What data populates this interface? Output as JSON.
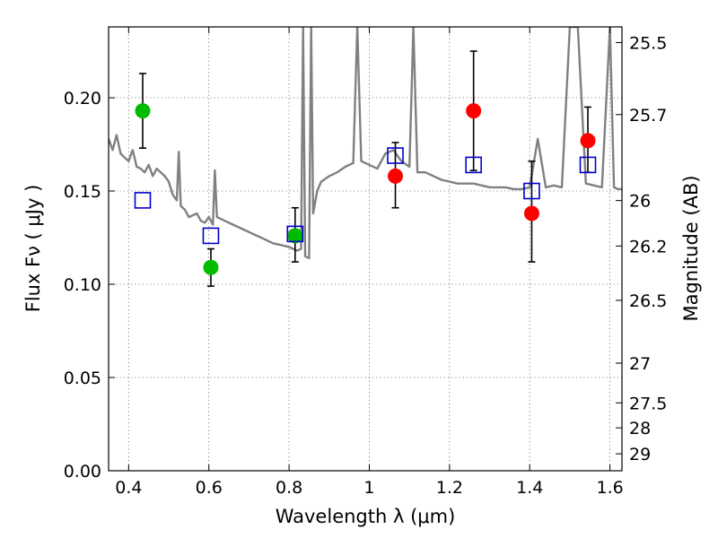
{
  "chart_data": {
    "type": "scatter",
    "title": "",
    "xlabel": "Wavelength  λ (μm)",
    "ylabel": "Flux  Fν  ( μJy )",
    "ylabel_right": "Magnitude (AB)",
    "xlim": [
      0.35,
      1.63
    ],
    "ylim": [
      0.0,
      0.238
    ],
    "grid": true,
    "x_ticks": [
      0.4,
      0.6,
      0.8,
      1.0,
      1.2,
      1.4,
      1.6
    ],
    "x_tick_labels": [
      "0.4",
      "0.6",
      "0.8",
      "1",
      "1.2",
      "1.4",
      "1.6"
    ],
    "y_ticks": [
      0.0,
      0.05,
      0.1,
      0.15,
      0.2
    ],
    "y_tick_labels": [
      "0.00",
      "0.05",
      "0.10",
      "0.15",
      "0.20"
    ],
    "right_ticks": [
      {
        "label": "25.5",
        "flux": 0.2296
      },
      {
        "label": "25.7",
        "flux": 0.191
      },
      {
        "label": "26",
        "flux": 0.1449
      },
      {
        "label": "26.2",
        "flux": 0.1205
      },
      {
        "label": "26.5",
        "flux": 0.0914
      },
      {
        "label": "27",
        "flux": 0.0577
      },
      {
        "label": "27.5",
        "flux": 0.0364
      },
      {
        "label": "28",
        "flux": 0.023
      },
      {
        "label": "29",
        "flux": 0.0091
      }
    ],
    "series": [
      {
        "color": "#808080",
        "type": "line",
        "x": [
          0.35,
          0.36,
          0.37,
          0.38,
          0.39,
          0.4,
          0.41,
          0.42,
          0.43,
          0.44,
          0.45,
          0.46,
          0.47,
          0.48,
          0.49,
          0.5,
          0.51,
          0.52,
          0.525,
          0.53,
          0.54,
          0.55,
          0.56,
          0.57,
          0.58,
          0.59,
          0.6,
          0.61,
          0.615,
          0.62,
          0.64,
          0.66,
          0.68,
          0.7,
          0.72,
          0.74,
          0.76,
          0.78,
          0.8,
          0.81,
          0.82,
          0.83,
          0.835,
          0.84,
          0.85,
          0.855,
          0.86,
          0.87,
          0.88,
          0.9,
          0.92,
          0.94,
          0.96,
          0.97,
          0.98,
          1.0,
          1.02,
          1.04,
          1.06,
          1.08,
          1.1,
          1.11,
          1.12,
          1.14,
          1.16,
          1.18,
          1.2,
          1.22,
          1.24,
          1.26,
          1.28,
          1.3,
          1.32,
          1.34,
          1.36,
          1.38,
          1.4,
          1.42,
          1.44,
          1.46,
          1.48,
          1.5,
          1.52,
          1.54,
          1.56,
          1.58,
          1.6,
          1.61,
          1.62,
          1.63
        ],
        "y": [
          0.178,
          0.172,
          0.18,
          0.17,
          0.168,
          0.166,
          0.172,
          0.163,
          0.162,
          0.16,
          0.164,
          0.158,
          0.162,
          0.16,
          0.158,
          0.155,
          0.148,
          0.145,
          0.171,
          0.142,
          0.14,
          0.136,
          0.137,
          0.138,
          0.134,
          0.133,
          0.136,
          0.132,
          0.161,
          0.136,
          0.134,
          0.132,
          0.13,
          0.128,
          0.126,
          0.124,
          0.122,
          0.121,
          0.12,
          0.119,
          0.118,
          0.119,
          0.238,
          0.115,
          0.114,
          0.238,
          0.138,
          0.15,
          0.155,
          0.158,
          0.16,
          0.163,
          0.165,
          0.238,
          0.166,
          0.164,
          0.162,
          0.17,
          0.172,
          0.166,
          0.163,
          0.238,
          0.16,
          0.16,
          0.158,
          0.156,
          0.155,
          0.154,
          0.154,
          0.154,
          0.153,
          0.152,
          0.152,
          0.152,
          0.151,
          0.151,
          0.152,
          0.178,
          0.152,
          0.153,
          0.152,
          0.238,
          0.238,
          0.154,
          0.153,
          0.152,
          0.238,
          0.152,
          0.151,
          0.151
        ]
      },
      {
        "color": "#00bb00",
        "marker": "circle",
        "x": [
          0.435,
          0.605,
          0.815
        ],
        "y": [
          0.193,
          0.109,
          0.126
        ],
        "yerr": [
          [
            0.173,
            0.213
          ],
          [
            0.099,
            0.119
          ],
          [
            0.112,
            0.141
          ]
        ]
      },
      {
        "color": "#ff0000",
        "marker": "circle",
        "x": [
          1.065,
          1.26,
          1.405,
          1.545
        ],
        "y": [
          0.158,
          0.193,
          0.138,
          0.177
        ],
        "yerr": [
          [
            0.141,
            0.176
          ],
          [
            0.161,
            0.225
          ],
          [
            0.112,
            0.166
          ],
          [
            0.16,
            0.195
          ]
        ]
      },
      {
        "color": "#0000cc",
        "marker": "square-open",
        "x": [
          0.435,
          0.605,
          0.815,
          1.065,
          1.26,
          1.405,
          1.545
        ],
        "y": [
          0.145,
          0.126,
          0.127,
          0.169,
          0.164,
          0.15,
          0.164
        ]
      }
    ]
  }
}
